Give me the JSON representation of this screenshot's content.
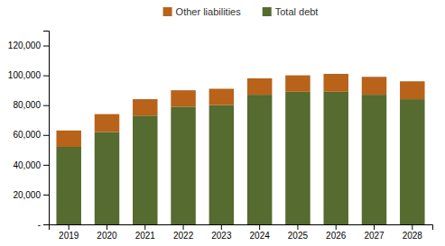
{
  "chart_data": {
    "type": "bar",
    "stacked": true,
    "categories": [
      "2019",
      "2020",
      "2021",
      "2022",
      "2023",
      "2024",
      "2025",
      "2026",
      "2027",
      "2028"
    ],
    "series": [
      {
        "name": "Total debt",
        "color": "#556b2f",
        "values": [
          52000,
          62000,
          73000,
          79000,
          80000,
          87000,
          89000,
          89000,
          87000,
          84000
        ]
      },
      {
        "name": "Other liabilities",
        "color": "#b8621a",
        "values": [
          11000,
          12000,
          11000,
          11000,
          11000,
          11000,
          11000,
          12000,
          12000,
          12000
        ]
      }
    ],
    "ylim": [
      0,
      130000
    ],
    "yticks": [
      {
        "value": 0,
        "label": "-"
      },
      {
        "value": 20000,
        "label": "20,000"
      },
      {
        "value": 40000,
        "label": "40,000"
      },
      {
        "value": 60000,
        "label": "60,000"
      },
      {
        "value": 80000,
        "label": "80,000"
      },
      {
        "value": 100000,
        "label": "100,000"
      },
      {
        "value": 120000,
        "label": "120,000"
      }
    ],
    "grid": false,
    "legend": "top"
  }
}
